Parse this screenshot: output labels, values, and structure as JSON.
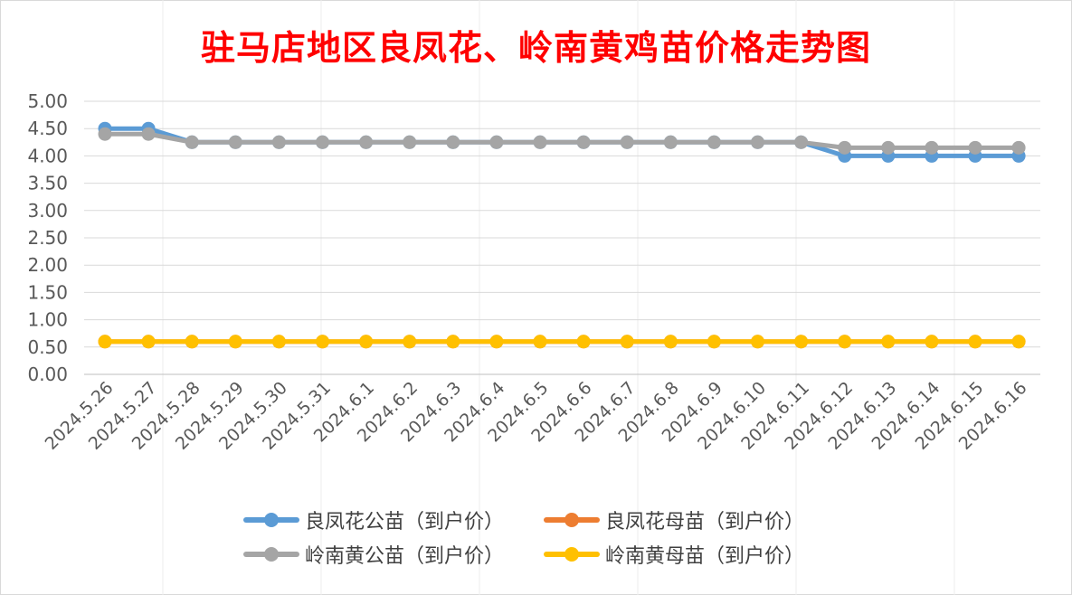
{
  "chart_data": {
    "type": "line",
    "title": "驻马店地区良凤花、岭南黄鸡苗价格走势图",
    "xlabel": "",
    "ylabel": "",
    "ylim": [
      0,
      5
    ],
    "ytick_step": 0.5,
    "ytick_labels": [
      "0.00",
      "0.50",
      "1.00",
      "1.50",
      "2.00",
      "2.50",
      "3.00",
      "3.50",
      "4.00",
      "4.50",
      "5.00"
    ],
    "grid": true,
    "legend_position": "bottom",
    "categories": [
      "2024.5.26",
      "2024.5.27",
      "2024.5.28",
      "2024.5.29",
      "2024.5.30",
      "2024.5.31",
      "2024.6.1",
      "2024.6.2",
      "2024.6.3",
      "2024.6.4",
      "2024.6.5",
      "2024.6.6",
      "2024.6.7",
      "2024.6.8",
      "2024.6.9",
      "2024.6.10",
      "2024.6.11",
      "2024.6.12",
      "2024.6.13",
      "2024.6.14",
      "2024.6.15",
      "2024.6.16"
    ],
    "series": [
      {
        "name": "良凤花公苗（到户价）",
        "color": "#5b9bd5",
        "values": [
          4.5,
          4.5,
          4.25,
          4.25,
          4.25,
          4.25,
          4.25,
          4.25,
          4.25,
          4.25,
          4.25,
          4.25,
          4.25,
          4.25,
          4.25,
          4.25,
          4.25,
          4.0,
          4.0,
          4.0,
          4.0,
          4.0
        ]
      },
      {
        "name": "良凤花母苗（到户价）",
        "color": "#ed7d31",
        "values": [
          0.6,
          0.6,
          0.6,
          0.6,
          0.6,
          0.6,
          0.6,
          0.6,
          0.6,
          0.6,
          0.6,
          0.6,
          0.6,
          0.6,
          0.6,
          0.6,
          0.6,
          0.6,
          0.6,
          0.6,
          0.6,
          0.6
        ]
      },
      {
        "name": "岭南黄公苗（到户价）",
        "color": "#a5a5a5",
        "values": [
          4.4,
          4.4,
          4.25,
          4.25,
          4.25,
          4.25,
          4.25,
          4.25,
          4.25,
          4.25,
          4.25,
          4.25,
          4.25,
          4.25,
          4.25,
          4.25,
          4.25,
          4.15,
          4.15,
          4.15,
          4.15,
          4.15
        ]
      },
      {
        "name": "岭南黄母苗（到户价）",
        "color": "#ffc000",
        "values": [
          0.6,
          0.6,
          0.6,
          0.6,
          0.6,
          0.6,
          0.6,
          0.6,
          0.6,
          0.6,
          0.6,
          0.6,
          0.6,
          0.6,
          0.6,
          0.6,
          0.6,
          0.6,
          0.6,
          0.6,
          0.6,
          0.6
        ]
      }
    ]
  }
}
